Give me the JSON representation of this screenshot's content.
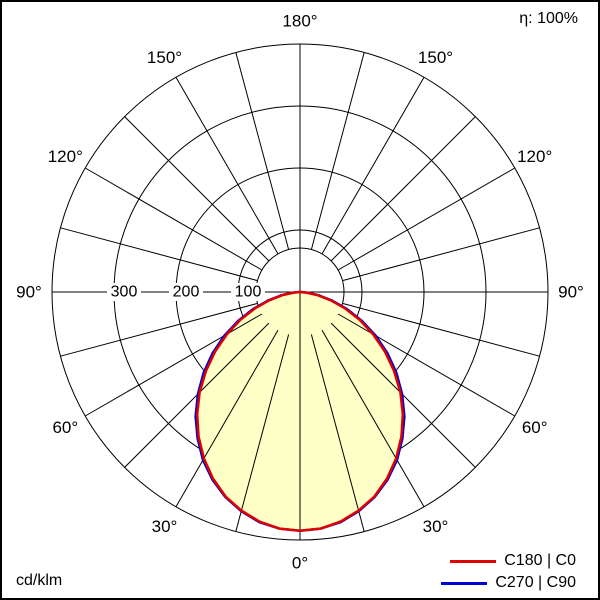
{
  "chart_data": {
    "type": "polar",
    "description": "Luminous intensity distribution polar diagram",
    "efficiency_label": "η: 100%",
    "unit_label": "cd/klm",
    "radial_unit": "cd/klm",
    "radial_max": 400,
    "radial_ticks": [
      {
        "value": 100,
        "label": "100"
      },
      {
        "value": 200,
        "label": "200"
      },
      {
        "value": 300,
        "label": "300"
      }
    ],
    "angle_ticks": [
      {
        "deg": 0,
        "label": "0°"
      },
      {
        "deg": 30,
        "label": "30°"
      },
      {
        "deg": 60,
        "label": "60°"
      },
      {
        "deg": 90,
        "label": "90°"
      },
      {
        "deg": 120,
        "label": "120°"
      },
      {
        "deg": 150,
        "label": "150°"
      },
      {
        "deg": 180,
        "label": "180°"
      }
    ],
    "spoke_step_deg": 15,
    "grid_color": "#000000",
    "fill_color": "#ffffc8",
    "legend": [
      {
        "label": "C180 | C0",
        "color": "#e00000"
      },
      {
        "label": "C270 | C90",
        "color": "#0000d0"
      }
    ],
    "series": [
      {
        "name": "C180 | C0",
        "color": "#e00000",
        "gamma_deg": [
          0,
          5,
          10,
          15,
          20,
          25,
          30,
          35,
          40,
          45,
          50,
          55,
          60,
          65,
          70,
          75,
          80,
          85,
          90
        ],
        "values": [
          385,
          383,
          376,
          365,
          351,
          332,
          310,
          285,
          258,
          229,
          198,
          167,
          136,
          106,
          77,
          51,
          28,
          10,
          0
        ]
      },
      {
        "name": "C270 | C90",
        "color": "#0000d0",
        "gamma_deg": [
          0,
          5,
          10,
          15,
          20,
          25,
          30,
          35,
          40,
          45,
          50,
          55,
          60,
          65,
          70,
          75,
          80,
          85,
          90
        ],
        "values": [
          385,
          383,
          377,
          366,
          352,
          334,
          313,
          288,
          262,
          233,
          203,
          172,
          141,
          110,
          81,
          54,
          30,
          11,
          0
        ]
      }
    ]
  }
}
